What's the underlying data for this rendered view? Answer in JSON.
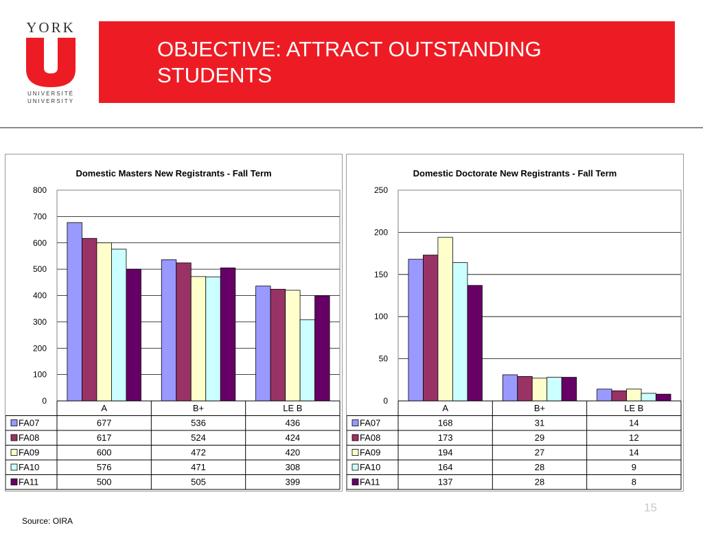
{
  "logo": {
    "top": "YORK",
    "fr": "UNIVERSITÉ",
    "en": "UNIVERSITY"
  },
  "header": {
    "title": "OBJECTIVE: ATTRACT OUTSTANDING STUDENTS"
  },
  "colors": {
    "banner": "#ed1c24",
    "FA07": "#9999ff",
    "FA08": "#993366",
    "FA09": "#ffffcc",
    "FA10": "#ccffff",
    "FA11": "#660066"
  },
  "chart_data": [
    {
      "type": "bar",
      "title": "Domestic Masters New Registrants - Fall Term",
      "categories": [
        "A",
        "B+",
        "LE B"
      ],
      "yticks": [
        "0",
        "100",
        "200",
        "300",
        "400",
        "500",
        "600",
        "700",
        "800"
      ],
      "ylim": [
        0,
        800
      ],
      "grid": true,
      "legend": "data table",
      "series": [
        {
          "name": "FA07",
          "color": "#9999ff",
          "values": [
            677,
            536,
            436
          ]
        },
        {
          "name": "FA08",
          "color": "#993366",
          "values": [
            617,
            524,
            424
          ]
        },
        {
          "name": "FA09",
          "color": "#ffffcc",
          "values": [
            600,
            472,
            420
          ]
        },
        {
          "name": "FA10",
          "color": "#ccffff",
          "values": [
            576,
            471,
            308
          ]
        },
        {
          "name": "FA11",
          "color": "#660066",
          "values": [
            500,
            505,
            399
          ]
        }
      ]
    },
    {
      "type": "bar",
      "title": "Domestic Doctorate New Registrants - Fall Term",
      "categories": [
        "A",
        "B+",
        "LE B"
      ],
      "yticks": [
        "0",
        "50",
        "100",
        "150",
        "200",
        "250"
      ],
      "ylim": [
        0,
        250
      ],
      "grid": true,
      "legend": "data table",
      "series": [
        {
          "name": "FA07",
          "color": "#9999ff",
          "values": [
            168,
            31,
            14
          ]
        },
        {
          "name": "FA08",
          "color": "#993366",
          "values": [
            173,
            29,
            12
          ]
        },
        {
          "name": "FA09",
          "color": "#ffffcc",
          "values": [
            194,
            27,
            14
          ]
        },
        {
          "name": "FA10",
          "color": "#ccffff",
          "values": [
            164,
            28,
            9
          ]
        },
        {
          "name": "FA11",
          "color": "#660066",
          "values": [
            137,
            28,
            8
          ]
        }
      ]
    }
  ],
  "footer": {
    "page": "15",
    "source": "Source: OIRA"
  }
}
